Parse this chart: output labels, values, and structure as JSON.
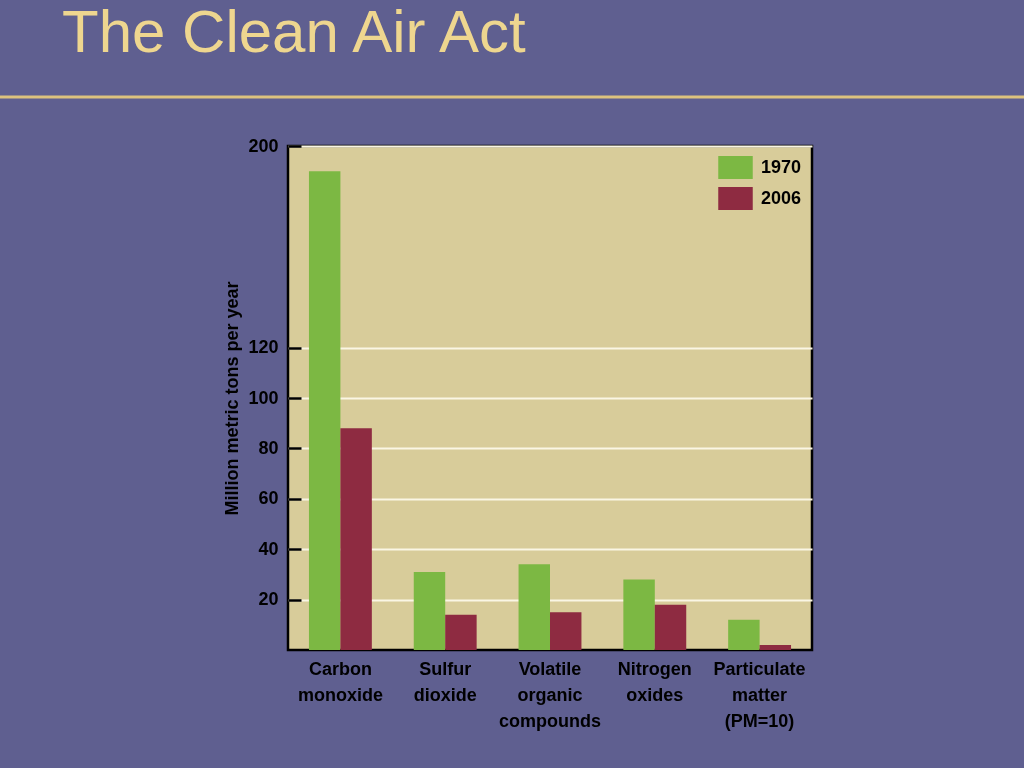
{
  "chart_data": {
    "type": "bar",
    "title": "The Clean Air Act",
    "ylabel": "Million metric tons per year",
    "categories": [
      "Carbon monoxide",
      "Sulfur dioxide",
      "Volatile organic compounds",
      "Nitrogen oxides",
      "Particulate matter (PM=10)"
    ],
    "series": [
      {
        "name": "1970",
        "color": "#7cb843",
        "values": [
          190,
          31,
          34,
          28,
          12
        ]
      },
      {
        "name": "2006",
        "color": "#8e2b41",
        "values": [
          88,
          14,
          15,
          18,
          2
        ]
      }
    ],
    "ylim": [
      0,
      200
    ],
    "yticks": [
      20,
      40,
      60,
      80,
      100,
      120,
      200
    ],
    "grid": "y",
    "legend": "top right"
  }
}
